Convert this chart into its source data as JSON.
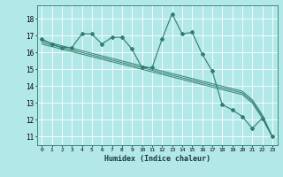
{
  "xlabel": "Humidex (Indice chaleur)",
  "background_color": "#b2e8e8",
  "grid_color": "#ffffff",
  "line_color": "#2e7d6e",
  "x_ticks": [
    0,
    1,
    2,
    3,
    4,
    5,
    6,
    7,
    8,
    9,
    10,
    11,
    12,
    13,
    14,
    15,
    16,
    17,
    18,
    19,
    20,
    21,
    22,
    23
  ],
  "y_ticks": [
    11,
    12,
    13,
    14,
    15,
    16,
    17,
    18
  ],
  "ylim": [
    10.5,
    18.8
  ],
  "xlim": [
    -0.5,
    23.5
  ],
  "main_line_x": [
    0,
    1,
    2,
    3,
    4,
    5,
    6,
    7,
    8,
    9,
    10,
    11,
    12,
    13,
    14,
    15,
    16,
    17,
    18,
    19,
    20,
    21,
    22,
    23
  ],
  "main_line_y": [
    16.8,
    16.5,
    16.3,
    16.3,
    17.1,
    17.1,
    16.5,
    16.9,
    16.9,
    16.2,
    15.1,
    15.1,
    16.8,
    18.3,
    17.1,
    17.2,
    15.9,
    14.9,
    12.9,
    12.6,
    12.2,
    11.5,
    12.1,
    11.0
  ],
  "band_line1": [
    16.7,
    16.55,
    16.4,
    16.25,
    16.1,
    15.95,
    15.8,
    15.65,
    15.5,
    15.35,
    15.2,
    15.05,
    14.9,
    14.75,
    14.6,
    14.45,
    14.3,
    14.15,
    14.0,
    13.85,
    13.7,
    13.2,
    12.3,
    11.0
  ],
  "band_line2": [
    16.6,
    16.45,
    16.3,
    16.15,
    16.0,
    15.85,
    15.7,
    15.55,
    15.4,
    15.25,
    15.1,
    14.95,
    14.8,
    14.65,
    14.5,
    14.35,
    14.2,
    14.05,
    13.9,
    13.75,
    13.6,
    13.1,
    12.2,
    11.0
  ],
  "band_line3": [
    16.5,
    16.35,
    16.2,
    16.05,
    15.9,
    15.75,
    15.6,
    15.45,
    15.3,
    15.15,
    15.0,
    14.85,
    14.7,
    14.55,
    14.4,
    14.25,
    14.1,
    13.95,
    13.8,
    13.65,
    13.5,
    13.0,
    12.1,
    11.0
  ]
}
